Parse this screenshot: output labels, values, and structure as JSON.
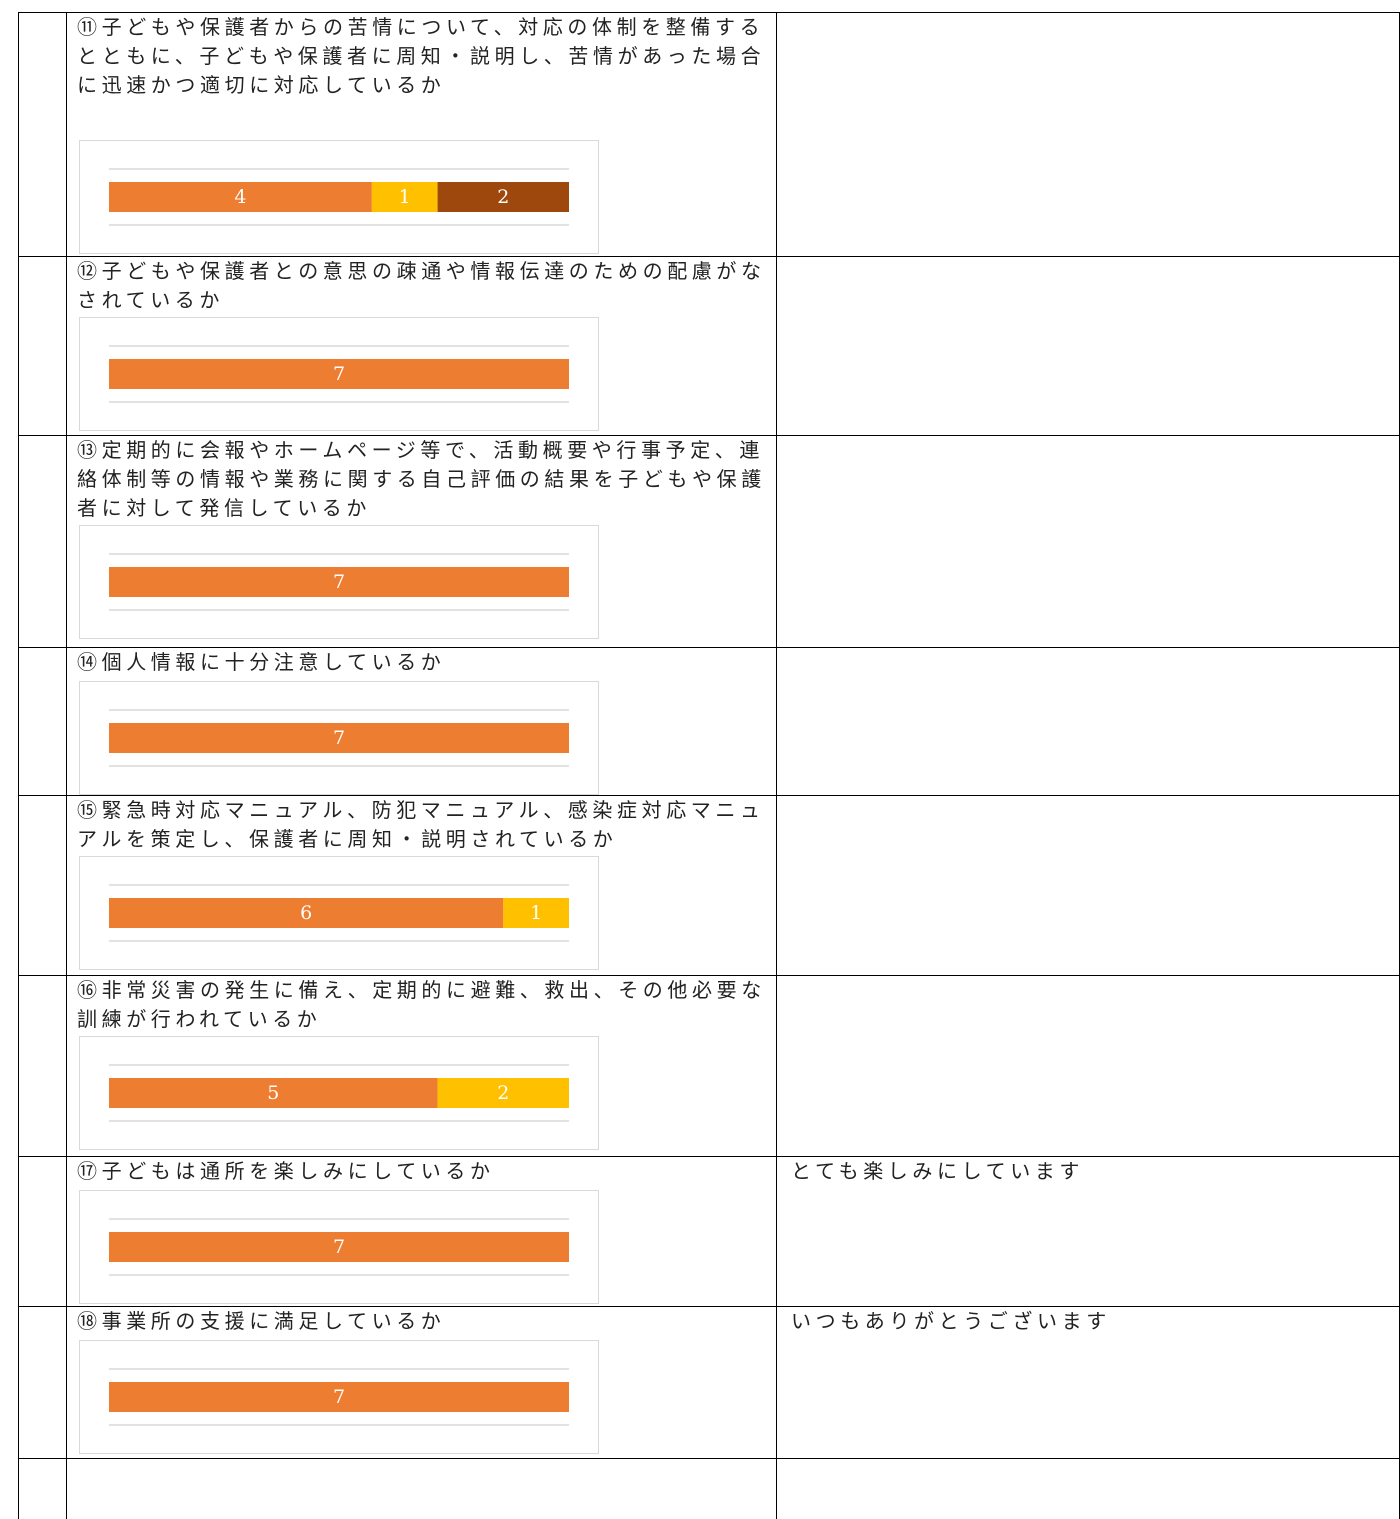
{
  "table": {
    "rows": [
      {
        "question": "⑪子どもや保護者からの苦情について、対応の体制を整備するとともに、子どもや保護者に周知・説明し、苦情があった場合に迅速かつ適切に対応しているか",
        "chart": {
          "type": "bar",
          "stacked": true,
          "orientation": "horizontal",
          "series": [
            {
              "color": "#ed7d31",
              "values": [
                4
              ]
            },
            {
              "color": "#ffc000",
              "values": [
                1
              ]
            },
            {
              "color": "#9e480e",
              "values": [
                2
              ]
            }
          ]
        },
        "comment": ""
      },
      {
        "question": "⑫子どもや保護者との意思の疎通や情報伝達のための配慮がなされているか",
        "chart": {
          "type": "bar",
          "stacked": true,
          "orientation": "horizontal",
          "series": [
            {
              "color": "#ed7d31",
              "values": [
                7
              ]
            }
          ]
        },
        "comment": ""
      },
      {
        "question": "⑬定期的に会報やホームページ等で、活動概要や行事予定、連絡体制等の情報や業務に関する自己評価の結果を子どもや保護者に対して発信しているか",
        "chart": {
          "type": "bar",
          "stacked": true,
          "orientation": "horizontal",
          "series": [
            {
              "color": "#ed7d31",
              "values": [
                7
              ]
            }
          ]
        },
        "comment": ""
      },
      {
        "question": "⑭個人情報に十分注意しているか",
        "chart": {
          "type": "bar",
          "stacked": true,
          "orientation": "horizontal",
          "series": [
            {
              "color": "#ed7d31",
              "values": [
                7
              ]
            }
          ]
        },
        "comment": ""
      },
      {
        "question": "⑮緊急時対応マニュアル、防犯マニュアル、感染症対応マニュアルを策定し、保護者に周知・説明されているか",
        "chart": {
          "type": "bar",
          "stacked": true,
          "orientation": "horizontal",
          "series": [
            {
              "color": "#ed7d31",
              "values": [
                6
              ]
            },
            {
              "color": "#ffc000",
              "values": [
                1
              ]
            }
          ]
        },
        "comment": ""
      },
      {
        "question": "⑯非常災害の発生に備え、定期的に避難、救出、その他必要な訓練が行われているか",
        "chart": {
          "type": "bar",
          "stacked": true,
          "orientation": "horizontal",
          "series": [
            {
              "color": "#ed7d31",
              "values": [
                5
              ]
            },
            {
              "color": "#ffc000",
              "values": [
                2
              ]
            }
          ]
        },
        "comment": ""
      },
      {
        "question": "⑰子どもは通所を楽しみにしているか",
        "chart": {
          "type": "bar",
          "stacked": true,
          "orientation": "horizontal",
          "series": [
            {
              "color": "#ed7d31",
              "values": [
                7
              ]
            }
          ]
        },
        "comment": "とても楽しみにしています"
      },
      {
        "question": "⑱事業所の支援に満足しているか",
        "chart": {
          "type": "bar",
          "stacked": true,
          "orientation": "horizontal",
          "series": [
            {
              "color": "#ed7d31",
              "values": [
                7
              ]
            }
          ]
        },
        "comment": "いつもありがとうございます"
      }
    ]
  }
}
